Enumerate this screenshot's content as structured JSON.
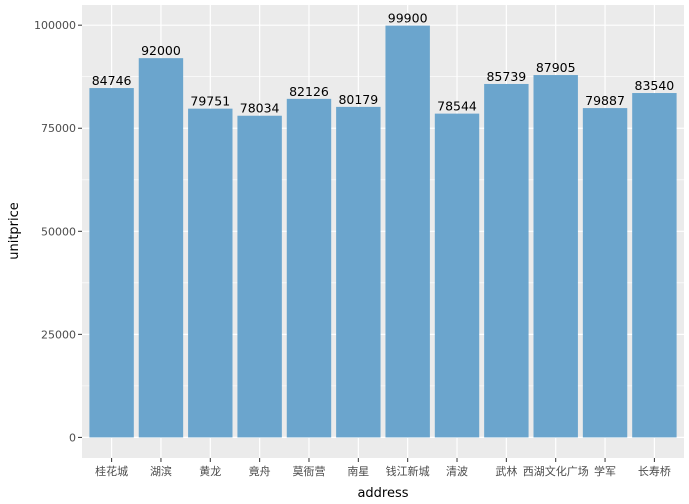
{
  "chart_data": {
    "type": "bar",
    "title": "",
    "xlabel": "address",
    "ylabel": "unitprice",
    "categories": [
      "桂花城",
      "湖滨",
      "黄龙",
      "竟舟",
      "莫衙营",
      "南星",
      "钱江新城",
      "清波",
      "武林",
      "西湖文化广场",
      "学军",
      "长寿桥"
    ],
    "values": [
      84746,
      92000,
      79751,
      78034,
      82126,
      80179,
      99900,
      78544,
      85739,
      87905,
      79887,
      83540
    ],
    "data_labels": [
      "84746",
      "92000",
      "79751",
      "78034",
      "82126",
      "80179",
      "99900",
      "78544",
      "85739",
      "87905",
      "79887",
      "83540"
    ],
    "y_ticks": [
      0,
      25000,
      50000,
      75000,
      100000
    ],
    "y_tick_labels": [
      "0",
      "25000",
      "50000",
      "75000",
      "100000"
    ],
    "ylim": [
      -4995,
      104895
    ],
    "grid": true,
    "bar_color": "#6BA5CD",
    "panel_color": "#EBEBEB",
    "grid_color": "#FFFFFF"
  }
}
